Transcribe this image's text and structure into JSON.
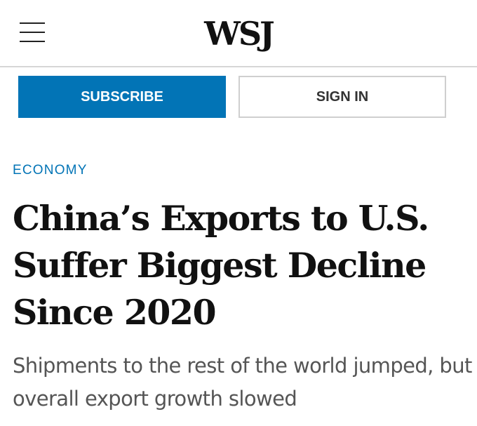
{
  "header": {
    "menu_icon": "hamburger-menu-icon",
    "logo": "WSJ"
  },
  "actions": {
    "subscribe_label": "SUBSCRIBE",
    "signin_label": "SIGN IN"
  },
  "article": {
    "section": "ECONOMY",
    "headline": "China’s Exports to U.S. Suffer Biggest Decline Since 2020",
    "dek": "Shipments to the rest of the world jumped, but overall export growth slowed"
  },
  "colors": {
    "accent": "#0274b6",
    "text": "#111111",
    "dek_text": "#555555",
    "border": "#d6d6d6"
  }
}
